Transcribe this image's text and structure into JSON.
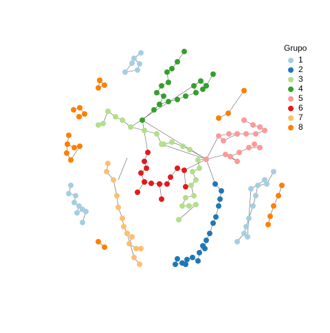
{
  "legend": {
    "title": "Grupo",
    "items": [
      {
        "label": "1",
        "color": "#a6cee3"
      },
      {
        "label": "2",
        "color": "#1f78b4"
      },
      {
        "label": "3",
        "color": "#b2df8a"
      },
      {
        "label": "4",
        "color": "#33a02c"
      },
      {
        "label": "5",
        "color": "#fb9a99"
      },
      {
        "label": "6",
        "color": "#e31a1c"
      },
      {
        "label": "7",
        "color": "#fdbf6f"
      },
      {
        "label": "8",
        "color": "#ff7f00"
      }
    ]
  }
}
